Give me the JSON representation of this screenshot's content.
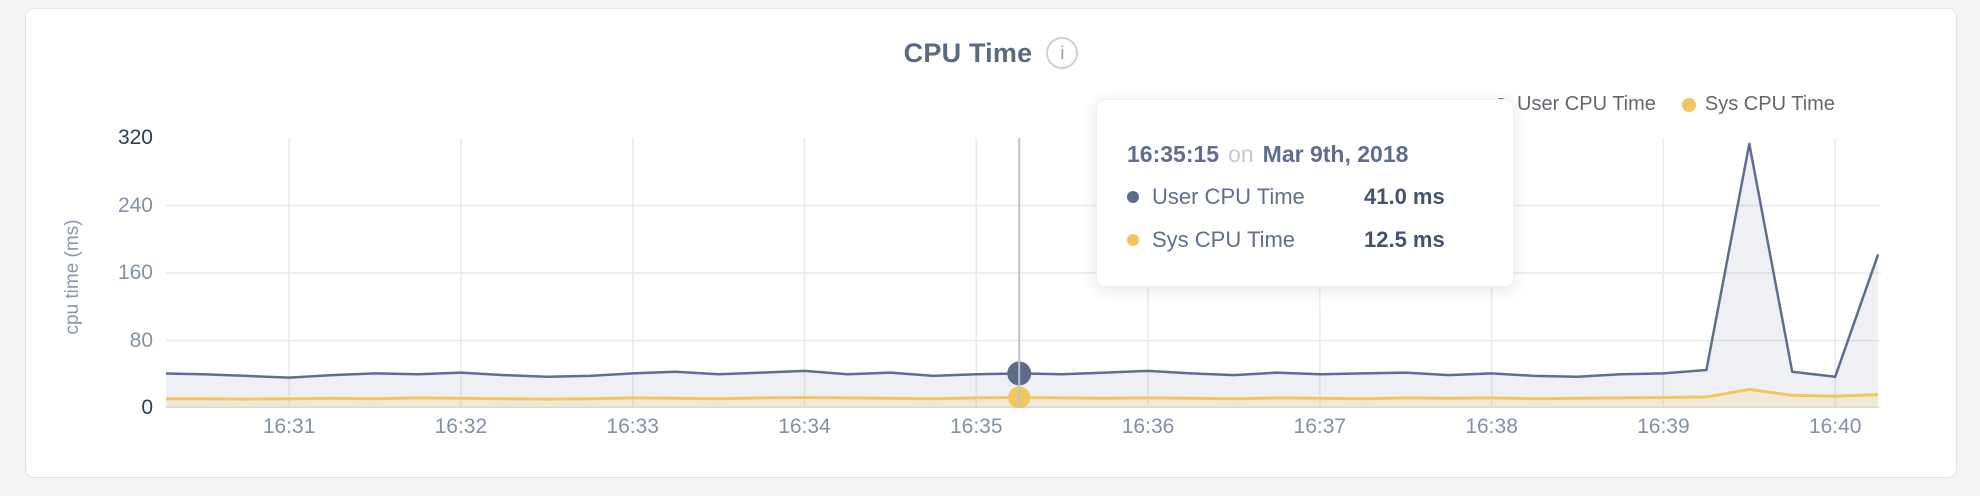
{
  "header": {
    "title": "CPU Time",
    "info_icon_glyph": "i"
  },
  "legend": {
    "items": [
      {
        "label": "User CPU Time",
        "color": "#5b6b8c"
      },
      {
        "label": "Sys CPU Time",
        "color": "#f0c75e"
      }
    ]
  },
  "tooltip": {
    "time": "16:35:15",
    "connector": "on",
    "date": "Mar 9th, 2018",
    "rows": [
      {
        "label": "User CPU Time",
        "value": "41.0 ms",
        "color": "#5b6b8c"
      },
      {
        "label": "Sys CPU Time",
        "value": "12.5 ms",
        "color": "#f0c75e"
      }
    ]
  },
  "chart_data": {
    "type": "area",
    "title": "CPU Time",
    "ylabel": "cpu time (ms)",
    "xlabel": "",
    "ylim": [
      0,
      320
    ],
    "yticks": [
      0,
      80,
      160,
      240,
      320
    ],
    "xlim": [
      "16:30:17",
      "16:40:16"
    ],
    "xticks": [
      "16:31",
      "16:32",
      "16:33",
      "16:34",
      "16:35",
      "16:36",
      "16:37",
      "16:38",
      "16:39",
      "16:40"
    ],
    "grid": true,
    "legend_position": "top-right",
    "x": [
      "16:30:15",
      "16:30:30",
      "16:30:45",
      "16:31:00",
      "16:31:15",
      "16:31:30",
      "16:31:45",
      "16:32:00",
      "16:32:15",
      "16:32:30",
      "16:32:45",
      "16:33:00",
      "16:33:15",
      "16:33:30",
      "16:33:45",
      "16:34:00",
      "16:34:15",
      "16:34:30",
      "16:34:45",
      "16:35:00",
      "16:35:15",
      "16:35:30",
      "16:35:45",
      "16:36:00",
      "16:36:15",
      "16:36:30",
      "16:36:45",
      "16:37:00",
      "16:37:15",
      "16:37:30",
      "16:37:45",
      "16:38:00",
      "16:38:15",
      "16:38:30",
      "16:38:45",
      "16:39:00",
      "16:39:15",
      "16:39:30",
      "16:39:45",
      "16:40:00",
      "16:40:15"
    ],
    "series": [
      {
        "name": "User CPU Time",
        "color": "#5f6e90",
        "fill": "rgba(95,110,144,0.10)",
        "line_width": 2.5,
        "values": [
          41,
          40,
          38,
          36,
          39,
          41,
          40,
          42,
          39,
          37,
          38,
          41,
          43,
          40,
          42,
          44,
          40,
          42,
          38,
          40,
          41,
          40,
          42,
          44,
          41,
          39,
          42,
          40,
          41,
          42,
          39,
          41,
          38,
          37,
          40,
          41,
          45,
          313,
          43,
          37,
          182
        ]
      },
      {
        "name": "Sys CPU Time",
        "color": "#f0c75e",
        "fill": "rgba(240,199,94,0.16)",
        "line_width": 3,
        "values": [
          11,
          11,
          10.5,
          11,
          11.5,
          11,
          12,
          11.5,
          11,
          10.5,
          11,
          12,
          11.5,
          11,
          12,
          12.5,
          12,
          11.5,
          11,
          12,
          12.5,
          12,
          11.5,
          12,
          11.5,
          11,
          12,
          11.5,
          11,
          12,
          11.5,
          12,
          11,
          11.5,
          12,
          12.5,
          13,
          22,
          15,
          14,
          16
        ]
      }
    ],
    "selected": {
      "x": "16:35:15",
      "values": [
        41.0,
        12.5
      ],
      "crosshair_color": "#bfc2c6",
      "dot_radii": [
        12,
        11
      ]
    },
    "grid_color": "#e9e9e9",
    "tick_color_mid": "#8591a7",
    "tick_color_edge": "#2e3d5a"
  }
}
